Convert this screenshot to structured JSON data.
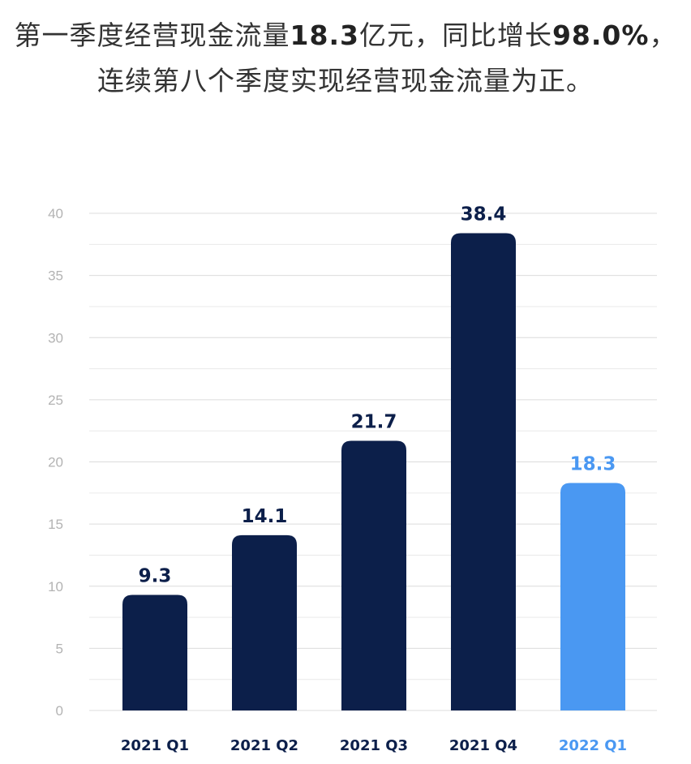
{
  "headline": {
    "line1": {
      "part1": "第一季度经营现金流量",
      "value1": "18.3",
      "part2": "亿元，同比增长",
      "value2": "98.0%",
      "part3": "，"
    },
    "line2": "连续第八个季度实现经营现金流量为正。"
  },
  "chart_data": {
    "type": "bar",
    "categories": [
      "2021 Q1",
      "2021 Q2",
      "2021 Q3",
      "2021 Q4",
      "2022 Q1"
    ],
    "values": [
      9.3,
      14.1,
      21.7,
      38.4,
      18.3
    ],
    "value_labels": [
      "9.3",
      "14.1",
      "21.7",
      "38.4",
      "18.3"
    ],
    "title": "",
    "xlabel": "",
    "ylabel": "",
    "ylim": [
      0,
      40
    ],
    "yticks": [
      0,
      5,
      10,
      15,
      20,
      25,
      30,
      35,
      40
    ],
    "minor_gridlines": true,
    "legend": "none",
    "colors": {
      "bar": "#0c1f4a",
      "highlight_bar": "#4a98f2",
      "grid": "#dcdcdc",
      "tick_text": "#b3b3b3"
    },
    "highlight_index": 4
  }
}
